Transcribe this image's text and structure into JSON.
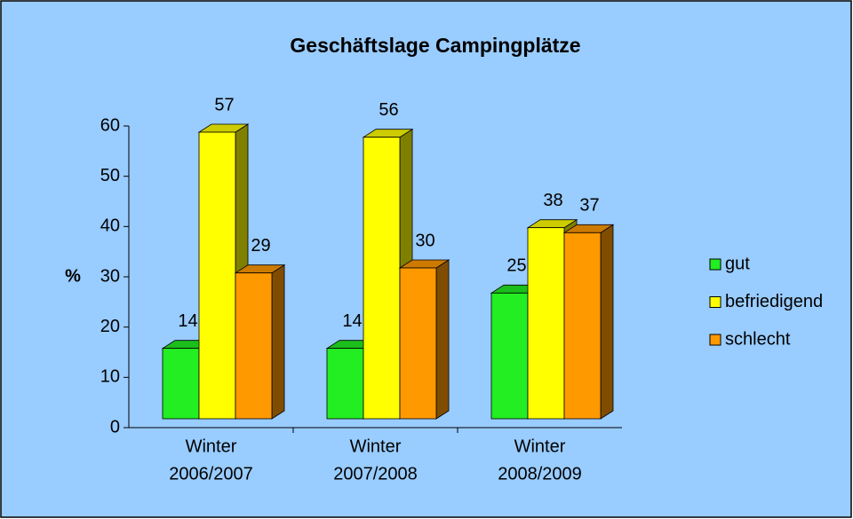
{
  "chart_data": {
    "type": "bar3d",
    "title": "Geschäftslage Campingplätze",
    "y_label": "%",
    "categories": [
      [
        "Winter",
        "2006/2007"
      ],
      [
        "Winter",
        "2007/2008"
      ],
      [
        "Winter",
        "2008/2009"
      ]
    ],
    "series": [
      {
        "name": "gut",
        "color": "#22ee22",
        "values": [
          14,
          14,
          25
        ]
      },
      {
        "name": "befriedigend",
        "color": "#ffff00",
        "values": [
          57,
          56,
          38
        ]
      },
      {
        "name": "schlecht",
        "color": "#ff9900",
        "values": [
          29,
          30,
          37
        ]
      }
    ],
    "ylim": [
      0,
      60
    ],
    "yticks": [
      0,
      10,
      20,
      30,
      40,
      50,
      60
    ],
    "legend": "right"
  }
}
